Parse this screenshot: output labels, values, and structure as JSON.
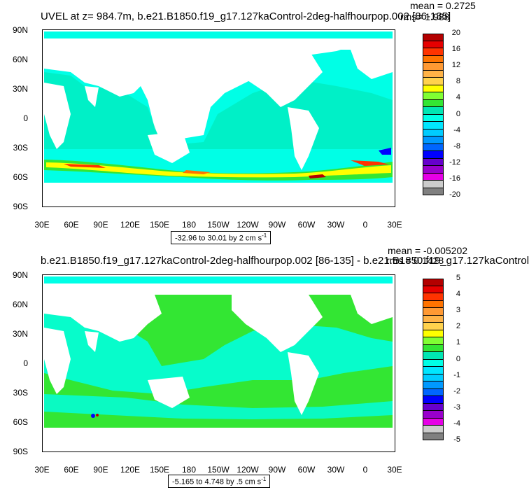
{
  "panels": [
    {
      "title": "UVEL at z= 984.7m, b.e21.B1850.f19_g17.127kaControl-2deg-halfhourpop.002 [86-135]",
      "mean": "mean = 0.2725",
      "rms": "rms= 1.988",
      "range_label": "-32.96 to 30.01 by 2 cm s",
      "range_unit_sup": "-1",
      "colorbar_labels": [
        "20",
        "16",
        "12",
        "8",
        "4",
        "0",
        "-4",
        "-8",
        "-12",
        "-16",
        "-20"
      ],
      "colorbar_colors": [
        "#b30000",
        "#e60000",
        "#ff3300",
        "#ff7300",
        "#ff9933",
        "#ffb347",
        "#ffd24d",
        "#ffff00",
        "#80ff33",
        "#33e633",
        "#00e6b3",
        "#00ffe6",
        "#00e6ff",
        "#00ccff",
        "#0099ff",
        "#0066ff",
        "#0000ff",
        "#6600cc",
        "#9900cc",
        "#e600e6",
        "#cccccc",
        "#808080"
      ]
    },
    {
      "title": "b.e21.B1850.f19_g17.127kaControl-2deg-halfhourpop.002 [86-135] - b.e21.B1850.f19_g17.127kaControl",
      "mean": "mean = -0.005202",
      "rms": "rms = 0.1428",
      "range_label": "-5.165 to 4.748 by .5 cm s",
      "range_unit_sup": "-1",
      "colorbar_labels": [
        "5",
        "4",
        "3",
        "2",
        "1",
        "0",
        "-1",
        "-2",
        "-3",
        "-4",
        "-5"
      ],
      "colorbar_colors": [
        "#b30000",
        "#e60000",
        "#ff3300",
        "#ff7300",
        "#ff9933",
        "#ffb347",
        "#ffd24d",
        "#ffff00",
        "#80ff33",
        "#33e633",
        "#00e6b3",
        "#00ffe6",
        "#00e6ff",
        "#00ccff",
        "#0099ff",
        "#0066ff",
        "#0000ff",
        "#6600cc",
        "#9900cc",
        "#e600e6",
        "#cccccc",
        "#808080"
      ]
    }
  ],
  "lat_labels": [
    "90N",
    "60N",
    "30N",
    "0",
    "30S",
    "60S",
    "90S"
  ],
  "lon_labels": [
    "30E",
    "60E",
    "90E",
    "120E",
    "150E",
    "180",
    "150W",
    "120W",
    "90W",
    "60W",
    "30W",
    "0",
    "30E"
  ],
  "colors": {
    "ocean_base": "#00ffe6",
    "ocean_mid": "#00e6b3",
    "ocean_green": "#33e633",
    "land": "#ffffff"
  }
}
